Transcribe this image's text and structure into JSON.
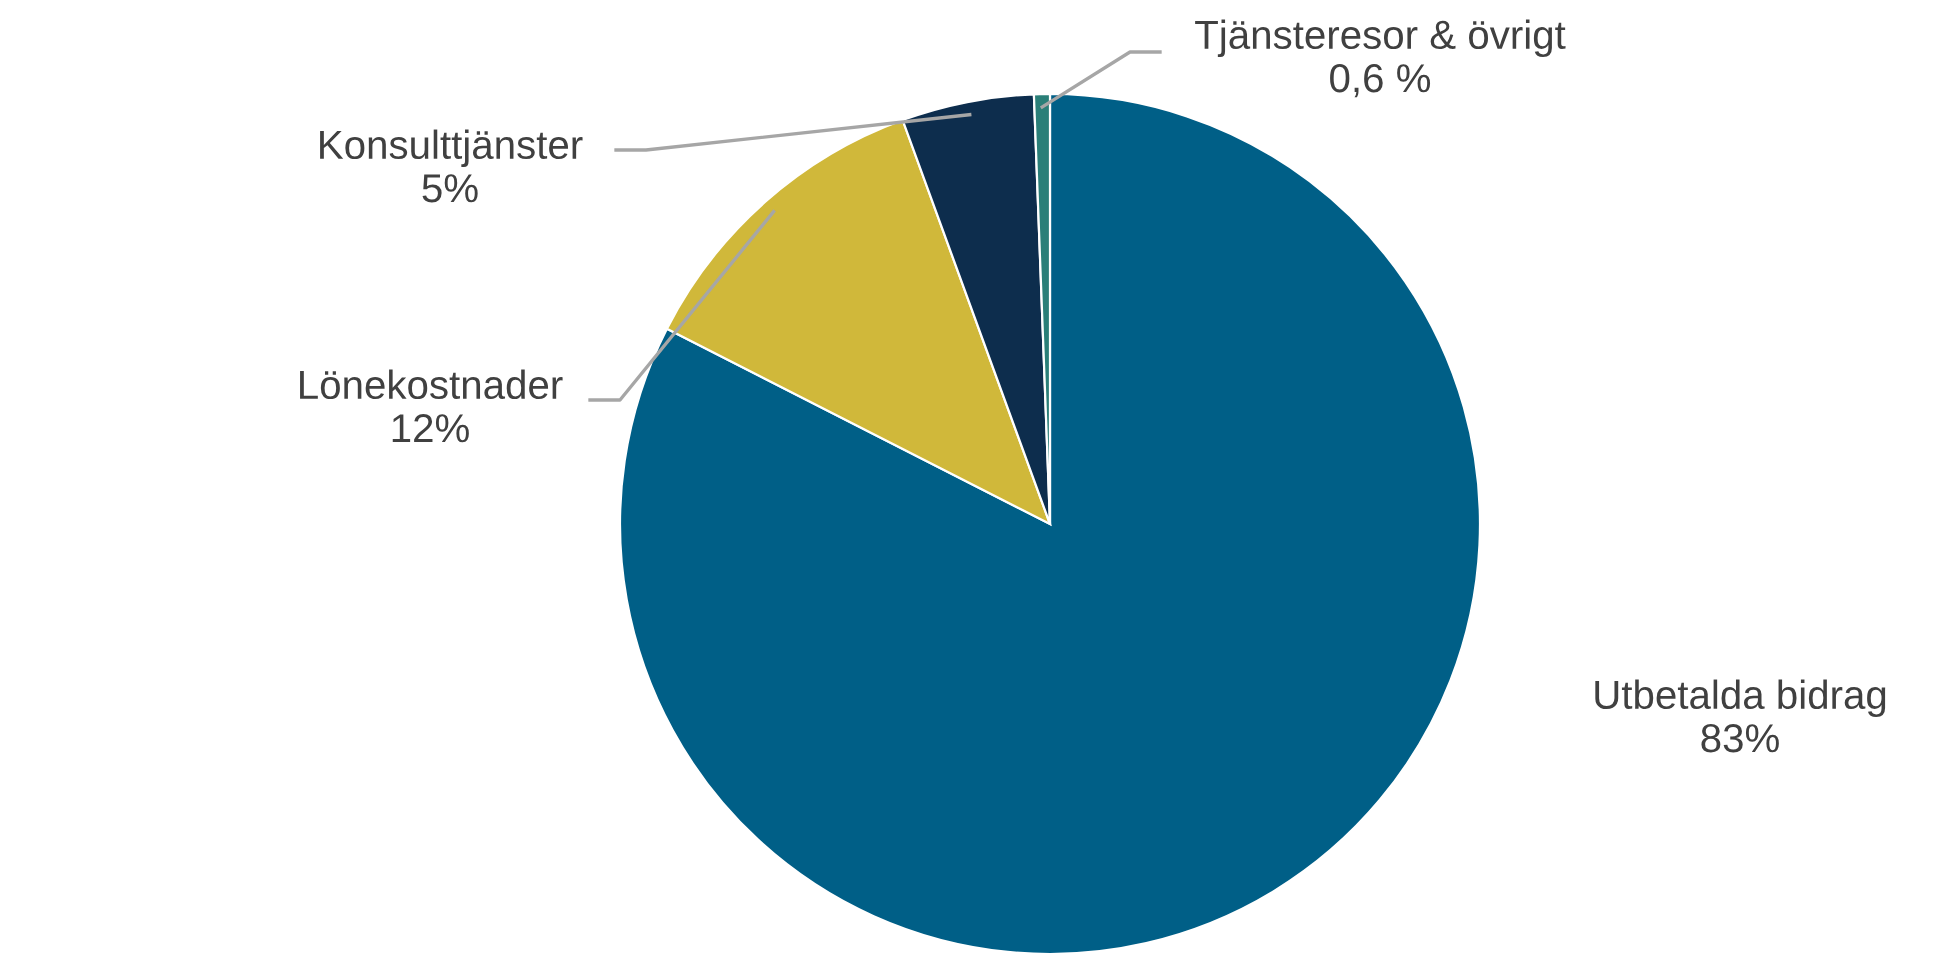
{
  "chart_data": {
    "type": "pie",
    "categories": [
      "Utbetalda bidrag",
      "Lönekostnader",
      "Konsulttjänster",
      "Tjänsteresor & övrigt"
    ],
    "values": [
      83,
      12,
      5,
      0.6
    ],
    "value_labels": [
      "83%",
      "12%",
      "5%",
      "0,6 %"
    ],
    "colors": [
      "#005f87",
      "#d0b83a",
      "#0d2d4d",
      "#2a7f78"
    ]
  }
}
